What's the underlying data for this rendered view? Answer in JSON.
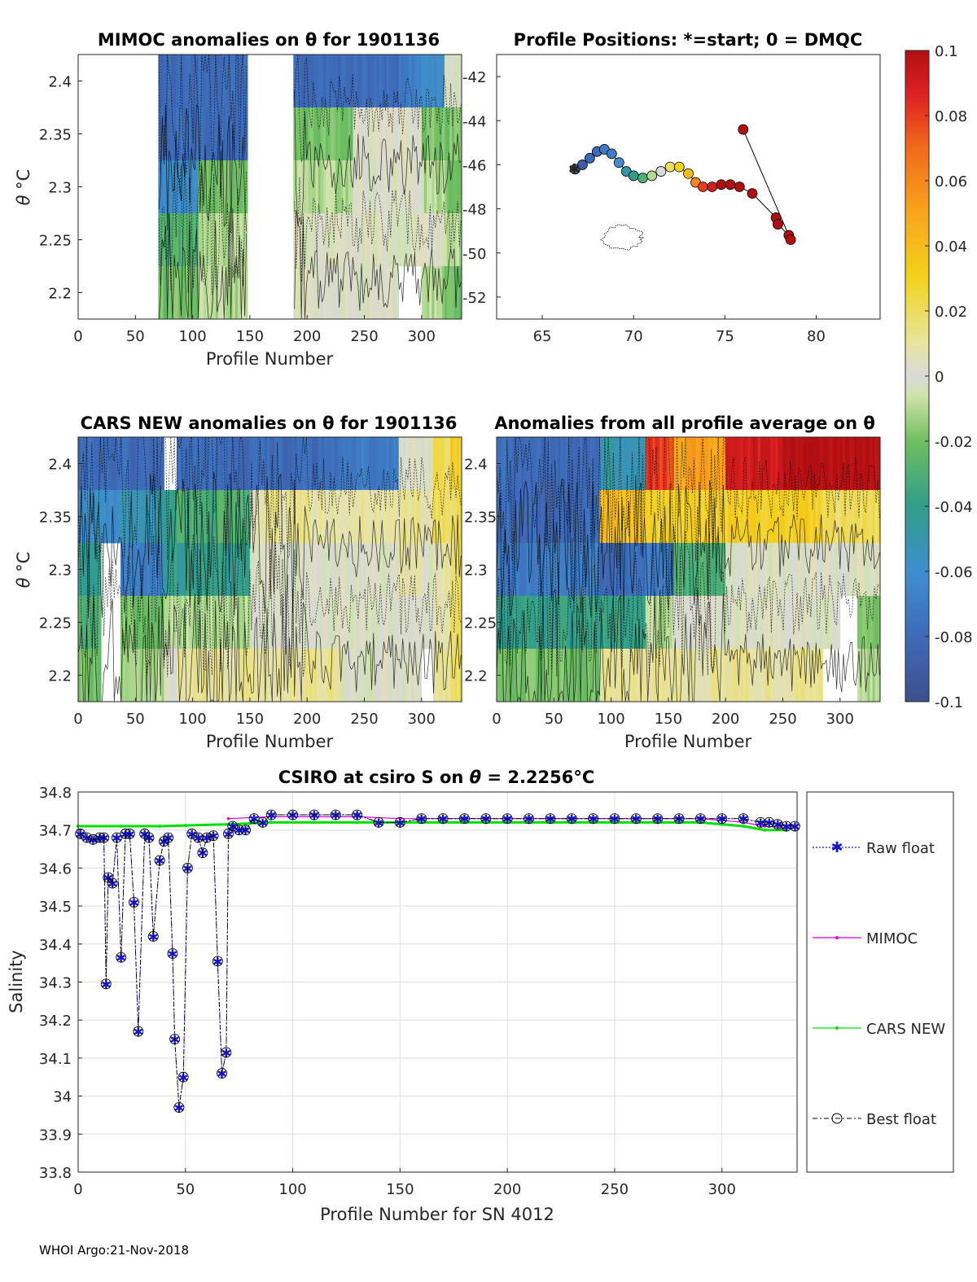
{
  "footer": "WHOI Argo:21-Nov-2018",
  "colors": {
    "raw": "#1414d8",
    "mimoc": "#e000e0",
    "cars": "#00e000",
    "best": "#000000",
    "nan": "#ffffff"
  },
  "chart_data": [
    {
      "id": "mimoc",
      "type": "heatmap",
      "title": "MIMOC anomalies on θ  for 1901136",
      "xlabel": "Profile Number",
      "ylabel_main": "θ",
      "ylabel_unit": "°C",
      "xlim": [
        0,
        335
      ],
      "ylim": [
        2.175,
        2.425
      ],
      "xticks": [
        0,
        50,
        100,
        150,
        200,
        250,
        300
      ],
      "yticks": [
        2.2,
        2.25,
        2.3,
        2.35,
        2.4
      ],
      "ylevels": [
        2.4,
        2.35,
        2.3,
        2.25,
        2.2
      ],
      "segments": [
        {
          "x0": 0,
          "x1": 70,
          "values": [
            null,
            null,
            null,
            null,
            null
          ]
        },
        {
          "x0": 70,
          "x1": 105,
          "values": [
            -0.08,
            -0.08,
            -0.06,
            -0.03,
            -0.02
          ]
        },
        {
          "x0": 105,
          "x1": 148,
          "values": [
            -0.08,
            -0.08,
            -0.02,
            -0.01,
            -0.01
          ]
        },
        {
          "x0": 148,
          "x1": 188,
          "values": [
            null,
            null,
            null,
            null,
            null
          ]
        },
        {
          "x0": 188,
          "x1": 240,
          "values": [
            -0.08,
            -0.02,
            -0.01,
            0.0,
            0.0
          ]
        },
        {
          "x0": 240,
          "x1": 280,
          "values": [
            -0.08,
            0.0,
            0.0,
            0.0,
            0.0
          ]
        },
        {
          "x0": 280,
          "x1": 300,
          "values": [
            -0.07,
            0.0,
            0.0,
            0.0,
            null
          ]
        },
        {
          "x0": 300,
          "x1": 320,
          "values": [
            -0.06,
            -0.02,
            -0.01,
            0.0,
            -0.01
          ]
        },
        {
          "x0": 320,
          "x1": 335,
          "values": [
            0.0,
            -0.02,
            -0.02,
            -0.01,
            -0.02
          ]
        }
      ]
    },
    {
      "id": "positions",
      "type": "scatter",
      "title": "Profile Positions: *=start; 0 = DMQC",
      "xlim": [
        62.5,
        83.5
      ],
      "ylim": [
        -53,
        -41
      ],
      "xticks": [
        65,
        70,
        75,
        80
      ],
      "yticks": [
        -42,
        -44,
        -46,
        -48,
        -50,
        -52
      ],
      "track": [
        {
          "lon": 66.8,
          "lat": -46.2,
          "v": -0.09
        },
        {
          "lon": 67.2,
          "lat": -46.0,
          "v": -0.09
        },
        {
          "lon": 67.6,
          "lat": -45.7,
          "v": -0.08
        },
        {
          "lon": 68.0,
          "lat": -45.4,
          "v": -0.08
        },
        {
          "lon": 68.4,
          "lat": -45.3,
          "v": -0.07
        },
        {
          "lon": 68.8,
          "lat": -45.5,
          "v": -0.07
        },
        {
          "lon": 69.2,
          "lat": -45.9,
          "v": -0.06
        },
        {
          "lon": 69.6,
          "lat": -46.3,
          "v": -0.05
        },
        {
          "lon": 70.0,
          "lat": -46.5,
          "v": -0.04
        },
        {
          "lon": 70.5,
          "lat": -46.6,
          "v": -0.03
        },
        {
          "lon": 71.0,
          "lat": -46.5,
          "v": -0.01
        },
        {
          "lon": 71.5,
          "lat": -46.3,
          "v": 0.0
        },
        {
          "lon": 72.0,
          "lat": -46.1,
          "v": 0.02
        },
        {
          "lon": 72.5,
          "lat": -46.1,
          "v": 0.03
        },
        {
          "lon": 73.0,
          "lat": -46.4,
          "v": 0.04
        },
        {
          "lon": 73.4,
          "lat": -46.8,
          "v": 0.06
        },
        {
          "lon": 73.8,
          "lat": -47.0,
          "v": 0.08
        },
        {
          "lon": 74.3,
          "lat": -47.0,
          "v": 0.09
        },
        {
          "lon": 74.8,
          "lat": -46.9,
          "v": 0.1
        },
        {
          "lon": 75.3,
          "lat": -46.9,
          "v": 0.1
        },
        {
          "lon": 75.8,
          "lat": -47.0,
          "v": 0.1
        },
        {
          "lon": 76.5,
          "lat": -47.3,
          "v": 0.1
        },
        {
          "lon": 77.8,
          "lat": -48.4,
          "v": 0.1
        },
        {
          "lon": 77.9,
          "lat": -48.7,
          "v": 0.1
        },
        {
          "lon": 78.5,
          "lat": -49.2,
          "v": 0.1
        },
        {
          "lon": 78.6,
          "lat": -49.4,
          "v": 0.1
        },
        {
          "lon": 76.0,
          "lat": -44.4,
          "v": 0.1
        }
      ]
    },
    {
      "id": "colorbar",
      "type": "colorbar",
      "range": [
        -0.1,
        0.1
      ],
      "ticks": [
        0.1,
        0.08,
        0.06,
        0.04,
        0.02,
        0,
        -0.02,
        -0.04,
        -0.06,
        -0.08,
        -0.1
      ],
      "tick_labels": [
        "0.1",
        "0.08",
        "0.06",
        "0.04",
        "0.02",
        "0",
        "-0.02",
        "-0.04",
        "-0.06",
        "-0.08",
        "-0.1"
      ]
    },
    {
      "id": "cars",
      "type": "heatmap",
      "title": "CARS NEW anomalies on θ for 1901136",
      "xlabel": "Profile Number",
      "ylabel_main": "θ",
      "ylabel_unit": "°C",
      "xlim": [
        0,
        335
      ],
      "ylim": [
        2.175,
        2.425
      ],
      "xticks": [
        0,
        50,
        100,
        150,
        200,
        250,
        300
      ],
      "yticks": [
        2.2,
        2.25,
        2.3,
        2.35,
        2.4
      ],
      "ylevels": [
        2.4,
        2.35,
        2.3,
        2.25,
        2.2
      ],
      "segments": [
        {
          "x0": 0,
          "x1": 20,
          "values": [
            -0.08,
            -0.06,
            -0.04,
            -0.03,
            -0.02
          ]
        },
        {
          "x0": 20,
          "x1": 37,
          "values": [
            -0.08,
            -0.06,
            null,
            null,
            null
          ]
        },
        {
          "x0": 37,
          "x1": 75,
          "values": [
            -0.08,
            -0.05,
            -0.07,
            -0.02,
            -0.01
          ]
        },
        {
          "x0": 75,
          "x1": 86,
          "values": [
            null,
            -0.04,
            -0.04,
            -0.01,
            0.0
          ]
        },
        {
          "x0": 86,
          "x1": 150,
          "values": [
            -0.08,
            -0.03,
            -0.04,
            -0.01,
            0.01
          ]
        },
        {
          "x0": 150,
          "x1": 230,
          "values": [
            -0.08,
            0.01,
            0.0,
            0.0,
            0.01
          ]
        },
        {
          "x0": 230,
          "x1": 280,
          "values": [
            -0.07,
            0.01,
            0.0,
            0.0,
            0.0
          ]
        },
        {
          "x0": 280,
          "x1": 300,
          "values": [
            0.0,
            0.01,
            0.01,
            0.0,
            0.0
          ]
        },
        {
          "x0": 300,
          "x1": 310,
          "values": [
            0.0,
            0.01,
            0.0,
            0.0,
            null
          ]
        },
        {
          "x0": 310,
          "x1": 325,
          "values": [
            0.02,
            0.02,
            0.01,
            0.01,
            0.01
          ]
        },
        {
          "x0": 325,
          "x1": 335,
          "values": [
            0.03,
            0.02,
            0.02,
            0.02,
            0.02
          ]
        }
      ]
    },
    {
      "id": "allavg",
      "type": "heatmap",
      "title": "Anomalies from all profile average on θ",
      "xlabel": "Profile Number",
      "xlim": [
        0,
        335
      ],
      "ylim": [
        2.175,
        2.425
      ],
      "xticks": [
        0,
        50,
        100,
        150,
        200,
        250,
        300
      ],
      "yticks": [
        2.2,
        2.25,
        2.3,
        2.35,
        2.4
      ],
      "ylevels": [
        2.4,
        2.35,
        2.3,
        2.25,
        2.2
      ],
      "segments": [
        {
          "x0": 0,
          "x1": 90,
          "values": [
            -0.08,
            -0.08,
            -0.07,
            -0.04,
            -0.02
          ]
        },
        {
          "x0": 90,
          "x1": 130,
          "values": [
            -0.05,
            0.04,
            -0.08,
            -0.04,
            0.01
          ]
        },
        {
          "x0": 130,
          "x1": 155,
          "values": [
            0.08,
            0.03,
            -0.07,
            -0.01,
            0.01
          ]
        },
        {
          "x0": 155,
          "x1": 200,
          "values": [
            0.05,
            0.03,
            -0.03,
            0.0,
            0.01
          ]
        },
        {
          "x0": 200,
          "x1": 250,
          "values": [
            0.09,
            0.03,
            0.0,
            0.0,
            0.01
          ]
        },
        {
          "x0": 250,
          "x1": 285,
          "values": [
            0.1,
            0.03,
            0.0,
            0.0,
            0.01
          ]
        },
        {
          "x0": 285,
          "x1": 300,
          "values": [
            0.1,
            0.02,
            0.0,
            0.0,
            null
          ]
        },
        {
          "x0": 300,
          "x1": 315,
          "values": [
            0.1,
            0.02,
            0.0,
            null,
            null
          ]
        },
        {
          "x0": 315,
          "x1": 335,
          "values": [
            0.1,
            0.02,
            0.0,
            -0.02,
            -0.01
          ]
        }
      ]
    },
    {
      "id": "salinity",
      "type": "line",
      "title_prefix": "CSIRO at csiro S on ",
      "title_theta": "θ",
      "title_value": " = 2.2256",
      "title_unit": "°C",
      "xlabel": "Profile Number for SN 4012",
      "ylabel": "Salinity",
      "xlim": [
        0,
        335
      ],
      "ylim": [
        33.8,
        34.8
      ],
      "xticks": [
        0,
        50,
        100,
        150,
        200,
        250,
        300
      ],
      "yticks": [
        33.8,
        33.9,
        34,
        34.1,
        34.2,
        34.3,
        34.4,
        34.5,
        34.6,
        34.7,
        34.8
      ],
      "ytick_labels": [
        "33.8",
        "33.9",
        "34",
        "34.1",
        "34.2",
        "34.3",
        "34.4",
        "34.5",
        "34.6",
        "34.7",
        "34.8"
      ],
      "series": [
        {
          "name": "Raw float",
          "x": [
            1,
            4,
            7,
            10,
            12,
            13,
            14,
            16,
            18,
            20,
            22,
            24,
            26,
            28,
            31,
            33,
            35,
            38,
            40,
            42,
            44,
            45,
            47,
            49,
            51,
            53,
            56,
            58,
            60,
            63,
            65,
            67,
            69,
            70,
            72,
            75,
            78,
            82,
            86,
            90,
            100,
            110,
            120,
            130,
            140,
            150,
            160,
            170,
            180,
            190,
            200,
            210,
            220,
            230,
            240,
            250,
            260,
            270,
            280,
            290,
            300,
            310,
            318,
            322,
            326,
            330,
            334
          ],
          "y": [
            34.69,
            34.68,
            34.675,
            34.68,
            34.68,
            34.295,
            34.575,
            34.56,
            34.68,
            34.365,
            34.69,
            34.69,
            34.51,
            34.17,
            34.69,
            34.68,
            34.42,
            34.62,
            34.67,
            34.68,
            34.375,
            34.15,
            33.97,
            34.05,
            34.6,
            34.69,
            34.68,
            34.64,
            34.68,
            34.685,
            34.355,
            34.06,
            34.115,
            34.69,
            34.71,
            34.7,
            34.7,
            34.73,
            34.72,
            34.74,
            34.74,
            34.74,
            34.74,
            34.74,
            34.72,
            34.72,
            34.73,
            34.73,
            34.73,
            34.73,
            34.73,
            34.73,
            34.73,
            34.73,
            34.73,
            34.73,
            34.73,
            34.73,
            34.73,
            34.73,
            34.73,
            34.73,
            34.72,
            34.72,
            34.715,
            34.71,
            34.71
          ]
        },
        {
          "name": "MIMOC",
          "x": [
            70,
            90,
            110,
            130,
            150,
            170,
            190,
            210,
            230,
            250,
            270,
            290,
            300,
            310,
            320,
            330
          ],
          "y": [
            34.73,
            34.735,
            34.735,
            34.735,
            34.73,
            34.73,
            34.73,
            34.73,
            34.73,
            34.73,
            34.73,
            34.73,
            34.725,
            34.72,
            34.71,
            34.705
          ]
        },
        {
          "name": "CARS NEW",
          "x": [
            0,
            20,
            38,
            50,
            70,
            90,
            110,
            130,
            150,
            170,
            190,
            210,
            230,
            250,
            270,
            290,
            300,
            310,
            320,
            330
          ],
          "y": [
            34.71,
            34.71,
            34.71,
            34.712,
            34.715,
            34.72,
            34.72,
            34.72,
            34.72,
            34.72,
            34.72,
            34.72,
            34.72,
            34.72,
            34.72,
            34.72,
            34.715,
            34.71,
            34.7,
            34.7
          ]
        },
        {
          "name": "Best float",
          "x": [
            1,
            4,
            7,
            10,
            12,
            13,
            14,
            16,
            18,
            20,
            22,
            24,
            26,
            28,
            31,
            33,
            35,
            38,
            40,
            42,
            44,
            45,
            47,
            49,
            51,
            53,
            56,
            58,
            60,
            63,
            65,
            67,
            69,
            70,
            72,
            75,
            78,
            82,
            86,
            90,
            100,
            110,
            120,
            130,
            140,
            150,
            160,
            170,
            180,
            190,
            200,
            210,
            220,
            230,
            240,
            250,
            260,
            270,
            280,
            290,
            300,
            310,
            318,
            322,
            326,
            330,
            334
          ],
          "y": [
            34.69,
            34.68,
            34.675,
            34.68,
            34.68,
            34.295,
            34.575,
            34.56,
            34.68,
            34.365,
            34.69,
            34.69,
            34.51,
            34.17,
            34.69,
            34.68,
            34.42,
            34.62,
            34.67,
            34.68,
            34.375,
            34.15,
            33.97,
            34.05,
            34.6,
            34.69,
            34.68,
            34.64,
            34.68,
            34.685,
            34.355,
            34.06,
            34.115,
            34.69,
            34.71,
            34.7,
            34.7,
            34.73,
            34.72,
            34.74,
            34.74,
            34.74,
            34.74,
            34.74,
            34.72,
            34.72,
            34.73,
            34.73,
            34.73,
            34.73,
            34.73,
            34.73,
            34.73,
            34.73,
            34.73,
            34.73,
            34.73,
            34.73,
            34.73,
            34.73,
            34.73,
            34.73,
            34.72,
            34.72,
            34.715,
            34.71,
            34.71
          ]
        }
      ]
    }
  ]
}
